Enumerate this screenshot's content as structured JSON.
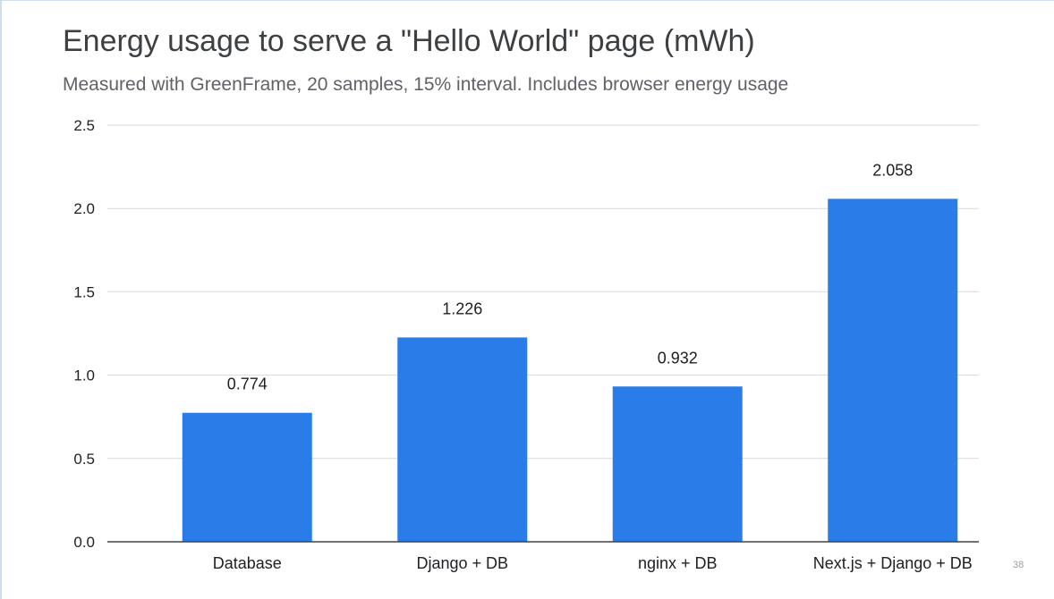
{
  "slide": {
    "title": "Energy usage to serve a \"Hello World\" page (mWh)",
    "subtitle": "Measured with GreenFrame, 20 samples, 15% interval. Includes browser energy usage",
    "page_number": "38"
  },
  "chart_data": {
    "type": "bar",
    "title": "Energy usage to serve a \"Hello World\" page (mWh)",
    "subtitle": "Measured with GreenFrame, 20 samples, 15% interval. Includes browser energy usage",
    "categories": [
      "Database",
      "Django + DB",
      "nginx + DB",
      "Next.js + Django + DB"
    ],
    "values": [
      0.774,
      1.226,
      0.932,
      2.058
    ],
    "value_labels": [
      "0.774",
      "1.226",
      "0.932",
      "2.058"
    ],
    "yticks": [
      "0.0",
      "0.5",
      "1.0",
      "1.5",
      "2.0",
      "2.5"
    ],
    "ylim": [
      0,
      2.5
    ],
    "xlabel": "",
    "ylabel": "",
    "grid": true,
    "legend": "none",
    "bar_color": "#2a7de8",
    "grid_color": "#d9d9d9",
    "axis_color": "#444444"
  }
}
